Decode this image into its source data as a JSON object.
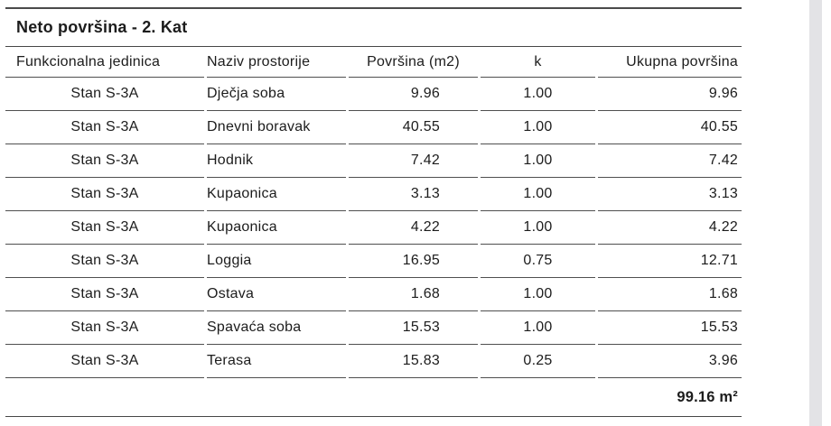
{
  "title": "Neto površina - 2. Kat",
  "colors": {
    "rule": "#474747",
    "text": "#1c1c1c",
    "background": "#ffffff",
    "scrollbar_track": "#e3e3e6"
  },
  "table": {
    "columns": [
      "Funkcionalna jedinica",
      "Naziv prostorije",
      "Površina (m2)",
      "k",
      "Ukupna površina"
    ],
    "rows": [
      {
        "unit": "Stan S-3A",
        "room": "Dječja soba",
        "area": "9.96",
        "k": "1.00",
        "total": "9.96"
      },
      {
        "unit": "Stan S-3A",
        "room": "Dnevni boravak",
        "area": "40.55",
        "k": "1.00",
        "total": "40.55"
      },
      {
        "unit": "Stan S-3A",
        "room": "Hodnik",
        "area": "7.42",
        "k": "1.00",
        "total": "7.42"
      },
      {
        "unit": "Stan S-3A",
        "room": "Kupaonica",
        "area": "3.13",
        "k": "1.00",
        "total": "3.13"
      },
      {
        "unit": "Stan S-3A",
        "room": "Kupaonica",
        "area": "4.22",
        "k": "1.00",
        "total": "4.22"
      },
      {
        "unit": "Stan S-3A",
        "room": "Loggia",
        "area": "16.95",
        "k": "0.75",
        "total": "12.71"
      },
      {
        "unit": "Stan S-3A",
        "room": "Ostava",
        "area": "1.68",
        "k": "1.00",
        "total": "1.68"
      },
      {
        "unit": "Stan S-3A",
        "room": "Spavaća soba",
        "area": "15.53",
        "k": "1.00",
        "total": "15.53"
      },
      {
        "unit": "Stan S-3A",
        "room": "Terasa",
        "area": "15.83",
        "k": "0.25",
        "total": "3.96"
      }
    ],
    "total": "99.16 m²"
  }
}
